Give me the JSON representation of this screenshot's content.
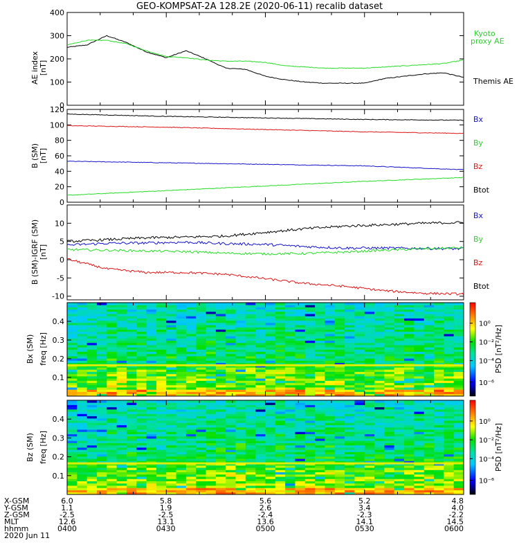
{
  "title": "GEO-KOMPSAT-2A 128.2E (2020-06-11) recalib dataset",
  "colors": {
    "black": "#000000",
    "green": "#22dd22",
    "red": "#dd1111",
    "blue": "#1111cc",
    "legend_green": "#33cc33"
  },
  "time_axis": {
    "rows": [
      {
        "label": "X-GSM",
        "values": [
          "6.0",
          "5.8",
          "5.6",
          "5.2",
          "4.8"
        ]
      },
      {
        "label": "Y-GSM",
        "values": [
          "1.1",
          "1.9",
          "2.6",
          "3.4",
          "4.0"
        ]
      },
      {
        "label": "Z-GSM",
        "values": [
          "-2.5",
          "-2.5",
          "-2.4",
          "-2.3",
          "-2.2"
        ]
      },
      {
        "label": "MLT",
        "values": [
          "12.6",
          "13.1",
          "13.6",
          "14.1",
          "14.5"
        ]
      },
      {
        "label": "hhmm",
        "values": [
          "0400",
          "0430",
          "0500",
          "0530",
          "0600"
        ]
      }
    ],
    "date": "2020 Jun 11"
  },
  "chart_data": [
    {
      "type": "line",
      "ylabel": "AE index",
      "yunit": "[nT]",
      "ylim": [
        0,
        400
      ],
      "yticks": [
        "0",
        "100",
        "200",
        "300",
        "400"
      ],
      "x_hours": [
        4.0,
        4.1,
        4.2,
        4.3,
        4.4,
        4.5,
        4.6,
        4.7,
        4.8,
        4.9,
        5.0,
        5.1,
        5.2,
        5.3,
        5.4,
        5.5,
        5.6,
        5.7,
        5.8,
        5.9,
        6.0
      ],
      "series": [
        {
          "name": "Themis AE",
          "color": "black",
          "values": [
            250,
            260,
            300,
            270,
            230,
            205,
            235,
            200,
            160,
            155,
            125,
            110,
            100,
            95,
            95,
            95,
            115,
            125,
            135,
            140,
            120
          ]
        },
        {
          "name": "Kyoto\nproxy AE",
          "color": "green",
          "values": [
            260,
            280,
            280,
            265,
            235,
            210,
            205,
            195,
            190,
            190,
            185,
            170,
            165,
            160,
            160,
            160,
            165,
            170,
            175,
            180,
            195
          ]
        }
      ]
    },
    {
      "type": "line",
      "ylabel": "B (SM)",
      "yunit": "[nT]",
      "ylim": [
        0,
        120
      ],
      "yticks": [
        "0",
        "20",
        "40",
        "60",
        "80",
        "100",
        "120"
      ],
      "x_hours": [
        4.0,
        4.5,
        5.0,
        5.5,
        6.0
      ],
      "series": [
        {
          "name": "Bx",
          "color": "blue",
          "values": [
            53,
            51,
            49,
            47,
            42
          ]
        },
        {
          "name": "By",
          "color": "green",
          "values": [
            9,
            15,
            21,
            27,
            32
          ]
        },
        {
          "name": "Bz",
          "color": "red",
          "values": [
            99,
            97,
            94,
            91,
            89
          ]
        },
        {
          "name": "Btot",
          "color": "black",
          "values": [
            114,
            111,
            109,
            107,
            106
          ]
        }
      ]
    },
    {
      "type": "line",
      "ylabel": "B (SM)-IGRF (SM)",
      "yunit": "[nT]",
      "ylim": [
        -11,
        15
      ],
      "yticks": [
        "-10",
        "-5",
        "0",
        "5",
        "10"
      ],
      "x_hours": [
        4.0,
        4.2,
        4.4,
        4.6,
        4.8,
        5.0,
        5.2,
        5.4,
        5.6,
        5.8,
        6.0
      ],
      "series": [
        {
          "name": "Bx",
          "color": "blue",
          "values": [
            4.0,
            4.5,
            4.6,
            4.8,
            4.4,
            4.2,
            3.6,
            3.2,
            3.2,
            3.1,
            3.0
          ]
        },
        {
          "name": "By",
          "color": "green",
          "values": [
            2.8,
            2.6,
            2.4,
            2.2,
            1.8,
            1.6,
            1.7,
            2.1,
            2.6,
            3.0,
            3.3
          ]
        },
        {
          "name": "Bz",
          "color": "red",
          "values": [
            0.2,
            -2.5,
            -3.5,
            -3.5,
            -4.0,
            -5.2,
            -6.5,
            -7.3,
            -8.5,
            -9.2,
            -9.4
          ]
        },
        {
          "name": "Btot",
          "color": "black",
          "values": [
            5.0,
            5.5,
            6.0,
            6.2,
            6.5,
            7.5,
            8.5,
            9.2,
            9.6,
            10.0,
            10.2
          ]
        }
      ]
    },
    {
      "type": "heatmap",
      "ylabel": "Bx (SM)",
      "yunit": "freq [Hz]",
      "ylim": [
        0,
        0.5
      ],
      "yticks": [
        "0.1",
        "0.2",
        "0.3",
        "0.4"
      ],
      "colorbar": {
        "label": "PSD [nT²/Hz]",
        "ticks": [
          "10⁰",
          "10⁻²",
          "10⁻⁴",
          "10⁻⁶"
        ]
      }
    },
    {
      "type": "heatmap",
      "ylabel": "Bz (SM)",
      "yunit": "freq [Hz]",
      "ylim": [
        0,
        0.5
      ],
      "yticks": [
        "0.1",
        "0.2",
        "0.3",
        "0.4"
      ],
      "colorbar": {
        "label": "PSD [nT²/Hz]",
        "ticks": [
          "10⁰",
          "10⁻²",
          "10⁻⁴",
          "10⁻⁶"
        ]
      }
    }
  ]
}
